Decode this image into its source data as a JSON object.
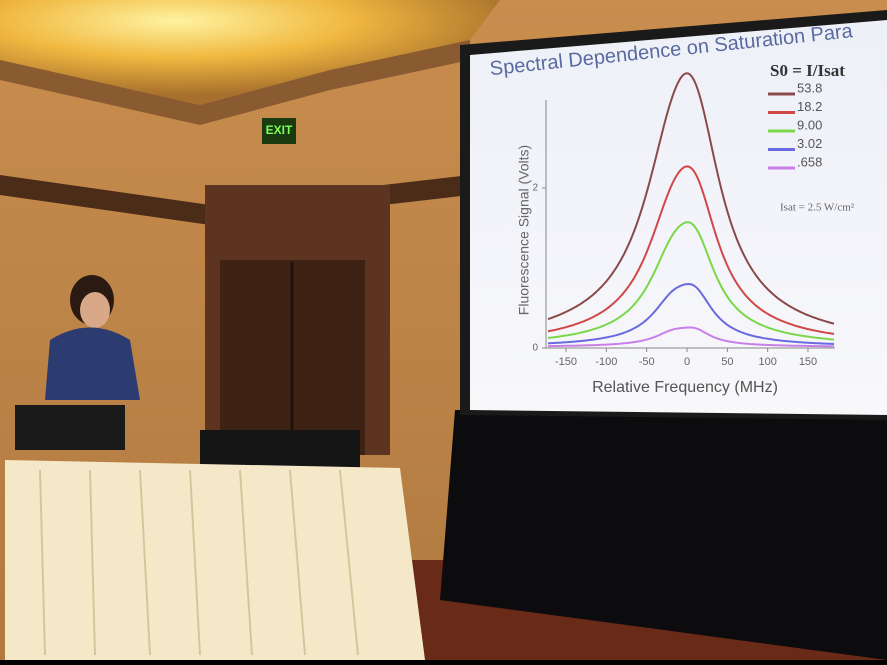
{
  "exit_sign": "EXIT",
  "slide": {
    "title": "Spectral Dependence on Saturation Para",
    "legend_title": "S0 = I/Isat",
    "legend": [
      "53.8",
      "18.2",
      "9.00",
      "3.02",
      ".658"
    ],
    "note": "Isat = 2.5 W/cm²",
    "y_label": "Fluorescence Signal (Volts)",
    "x_label": "Relative Frequency (MHz)",
    "x_ticks": [
      "-150",
      "-100",
      "-50",
      "0",
      "50",
      "100",
      "150"
    ],
    "y_ticks": [
      "0",
      "2"
    ]
  }
}
